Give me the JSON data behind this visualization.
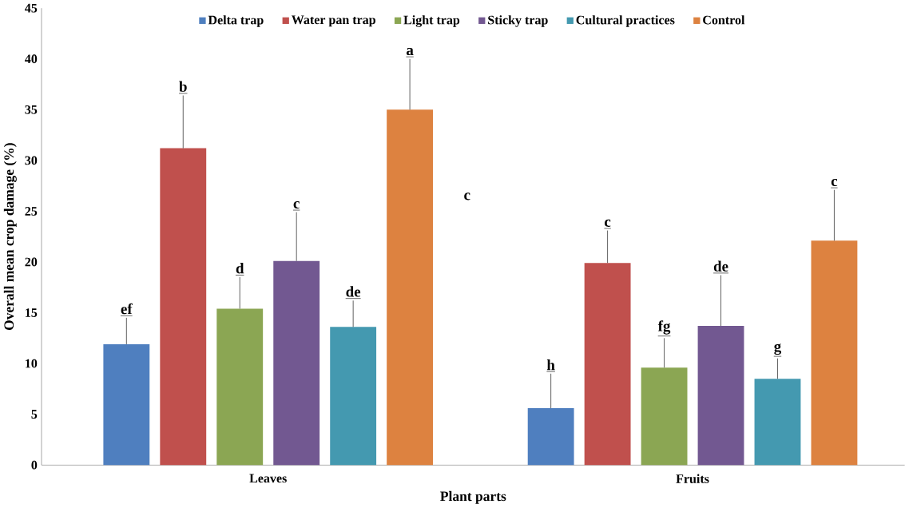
{
  "chart_data": {
    "type": "bar",
    "xlabel": "Plant parts",
    "ylabel": "Overall mean crop damage (%)",
    "categories": [
      "Leaves",
      "Fruits"
    ],
    "series": [
      {
        "name": "Delta trap",
        "color": "#4f7fbf",
        "values": [
          11.9,
          5.6
        ],
        "errors": [
          [
            11.9,
            14.5
          ],
          [
            5.6,
            9.0
          ]
        ]
      },
      {
        "name": "Water pan trap",
        "color": "#c0504d",
        "values": [
          31.2,
          19.9
        ],
        "errors": [
          [
            31.2,
            36.4
          ],
          [
            19.9,
            23.1
          ]
        ]
      },
      {
        "name": "Light trap",
        "color": "#8ba653",
        "values": [
          15.4,
          9.6
        ],
        "errors": [
          [
            15.4,
            18.5
          ],
          [
            9.6,
            12.5
          ]
        ]
      },
      {
        "name": "Sticky trap",
        "color": "#725891",
        "values": [
          20.1,
          13.7
        ],
        "errors": [
          [
            20.1,
            24.9
          ],
          [
            13.7,
            18.7
          ]
        ]
      },
      {
        "name": "Cultural practices",
        "color": "#4499b0",
        "values": [
          13.6,
          8.5
        ],
        "errors": [
          [
            13.6,
            16.2
          ],
          [
            8.5,
            10.5
          ]
        ]
      },
      {
        "name": "Control",
        "color": "#dd8240",
        "values": [
          35.0,
          22.1
        ],
        "errors": [
          [
            35.0,
            40.0
          ],
          [
            22.1,
            27.1
          ]
        ]
      }
    ],
    "ylim": [
      0,
      45
    ],
    "yticks": [
      0,
      5,
      10,
      15,
      20,
      25,
      30,
      35,
      40,
      45
    ],
    "legend": "top",
    "annotations": [
      "ef",
      "b",
      "d",
      "c",
      "de",
      "a",
      "h",
      "c",
      "fg",
      "de",
      "g",
      "c",
      "c"
    ]
  }
}
